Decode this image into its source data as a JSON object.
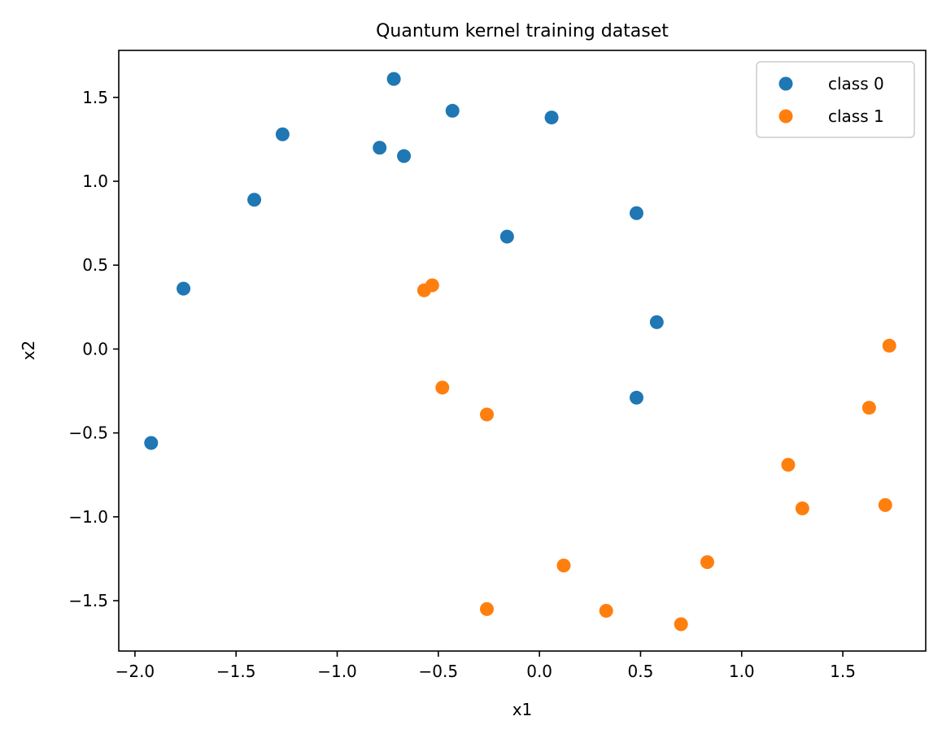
{
  "chart_data": {
    "type": "scatter",
    "title": "Quantum kernel training dataset",
    "xlabel": "x1",
    "ylabel": "x2",
    "xlim": [
      -2.08,
      1.91
    ],
    "ylim": [
      -1.8,
      1.78
    ],
    "xticks": [
      -2.0,
      -1.5,
      -1.0,
      -0.5,
      0.0,
      0.5,
      1.0,
      1.5
    ],
    "xtick_labels": [
      "−2.0",
      "−1.5",
      "−1.0",
      "−0.5",
      "0.0",
      "0.5",
      "1.0",
      "1.5"
    ],
    "yticks": [
      1.5,
      1.0,
      0.5,
      0.0,
      -0.5,
      -1.0,
      -1.5
    ],
    "ytick_labels": [
      "1.5",
      "1.0",
      "0.5",
      "0.0",
      "−0.5",
      "−1.0",
      "−1.5"
    ],
    "grid": false,
    "legend_position": "top-right",
    "series": [
      {
        "name": "class 0",
        "color": "#1f77b4",
        "points": [
          [
            -0.72,
            1.61
          ],
          [
            -0.43,
            1.42
          ],
          [
            0.06,
            1.38
          ],
          [
            -1.27,
            1.28
          ],
          [
            -0.79,
            1.2
          ],
          [
            -0.67,
            1.15
          ],
          [
            -1.41,
            0.89
          ],
          [
            0.48,
            0.81
          ],
          [
            -0.16,
            0.67
          ],
          [
            -1.76,
            0.36
          ],
          [
            0.58,
            0.16
          ],
          [
            0.48,
            -0.29
          ],
          [
            -1.92,
            -0.56
          ]
        ]
      },
      {
        "name": "class 1",
        "color": "#ff7f0e",
        "points": [
          [
            -0.53,
            0.38
          ],
          [
            -0.57,
            0.35
          ],
          [
            -0.48,
            -0.23
          ],
          [
            -0.26,
            -0.39
          ],
          [
            1.73,
            0.02
          ],
          [
            1.63,
            -0.35
          ],
          [
            1.23,
            -0.69
          ],
          [
            1.3,
            -0.95
          ],
          [
            1.71,
            -0.93
          ],
          [
            0.83,
            -1.27
          ],
          [
            0.12,
            -1.29
          ],
          [
            -0.26,
            -1.55
          ],
          [
            0.33,
            -1.56
          ],
          [
            0.7,
            -1.64
          ]
        ]
      }
    ]
  }
}
